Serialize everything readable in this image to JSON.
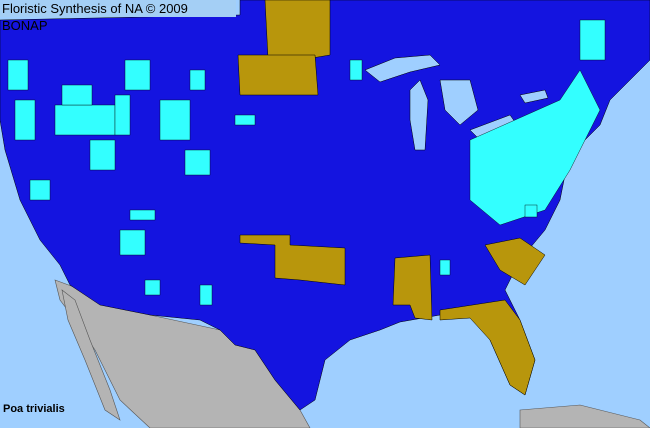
{
  "map": {
    "title": "Floristic Synthesis of NA © 2009 BONAP",
    "species": "Poa trivialis",
    "colors": {
      "ocean": "#9fcfff",
      "present": "#1414e0",
      "native_county": "#33ffff",
      "state_gold": "#b8960c",
      "outside": "#b4b4b4"
    }
  }
}
